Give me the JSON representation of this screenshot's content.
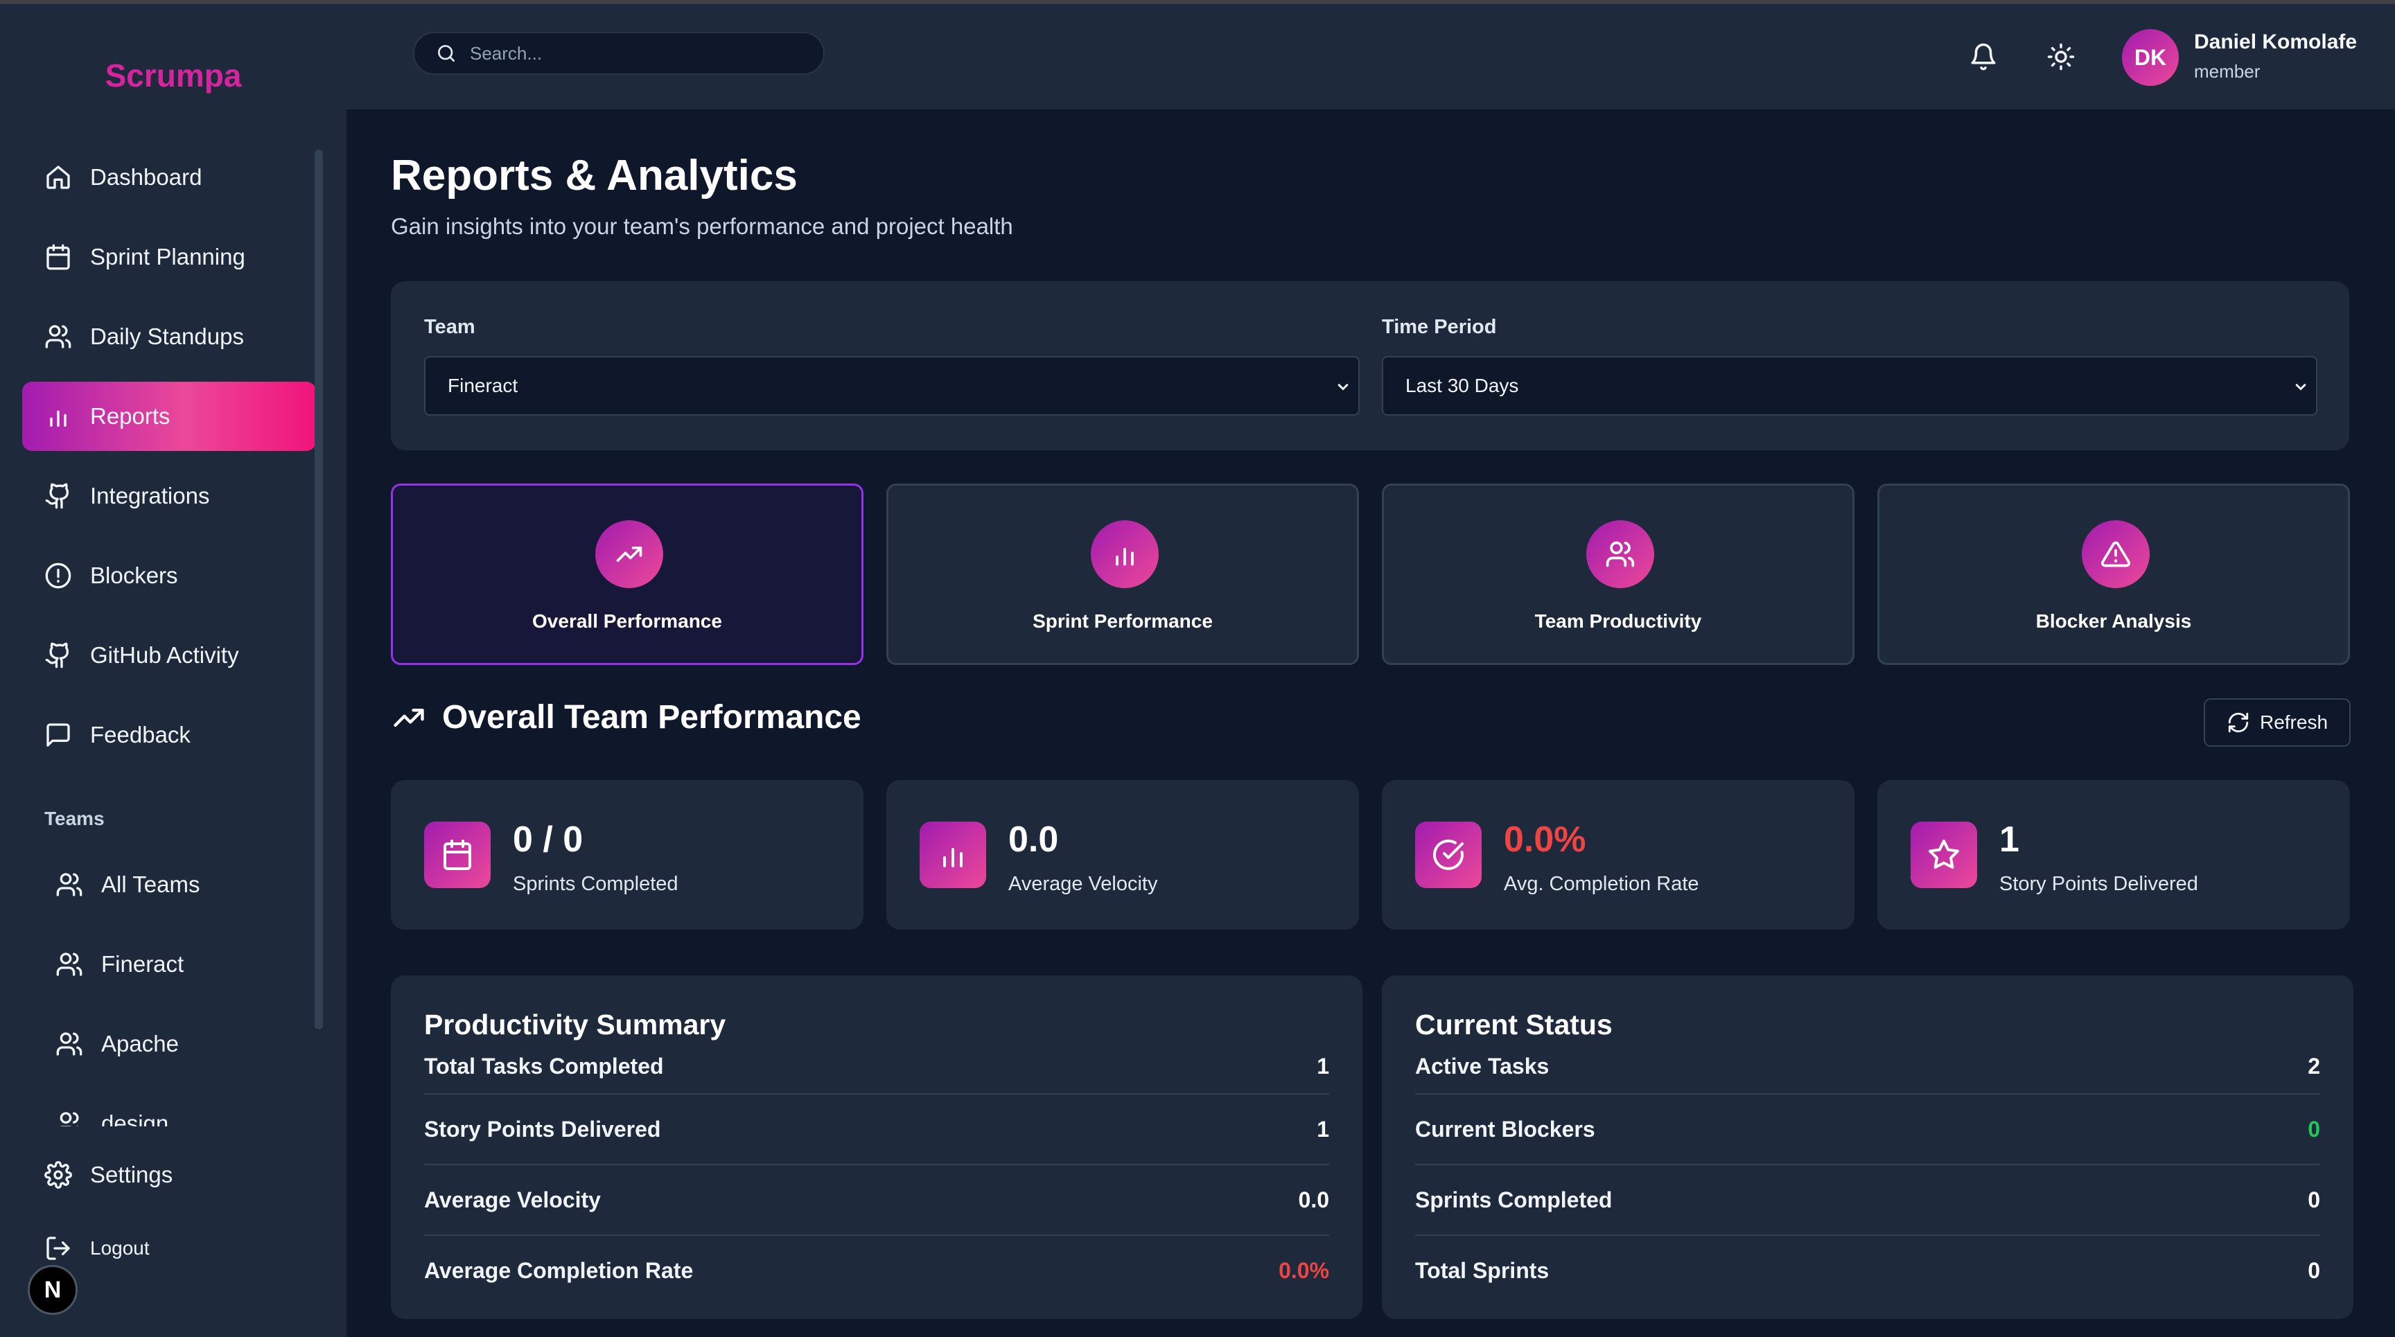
{
  "app": {
    "name": "Scrumpa"
  },
  "sidebar": {
    "items": [
      {
        "label": "Dashboard",
        "icon": "home-icon"
      },
      {
        "label": "Sprint Planning",
        "icon": "calendar-icon"
      },
      {
        "label": "Daily Standups",
        "icon": "users-icon"
      },
      {
        "label": "Reports",
        "icon": "bar-chart-icon",
        "active": true
      },
      {
        "label": "Integrations",
        "icon": "github-icon"
      },
      {
        "label": "Blockers",
        "icon": "alert-circle-icon"
      },
      {
        "label": "GitHub Activity",
        "icon": "github-icon"
      },
      {
        "label": "Feedback",
        "icon": "message-square-icon"
      }
    ],
    "teams_label": "Teams",
    "teams": [
      {
        "label": "All Teams",
        "icon": "users-icon"
      },
      {
        "label": "Fineract",
        "icon": "users-icon"
      },
      {
        "label": "Apache",
        "icon": "users-icon"
      },
      {
        "label": "design",
        "icon": "users-icon"
      }
    ],
    "settings_label": "Settings",
    "logout_label": "Logout",
    "badge_letter": "N"
  },
  "header": {
    "search_placeholder": "Search...",
    "user": {
      "initials": "DK",
      "name": "Daniel Komolafe",
      "role": "member"
    }
  },
  "page": {
    "title": "Reports & Analytics",
    "subtitle": "Gain insights into your team's performance and project health"
  },
  "filters": {
    "team_label": "Team",
    "team_value": "Fineract",
    "period_label": "Time Period",
    "period_value": "Last 30 Days"
  },
  "report_tabs": [
    {
      "label": "Overall Performance",
      "icon": "trending-up-icon",
      "selected": true
    },
    {
      "label": "Sprint Performance",
      "icon": "bar-chart-icon"
    },
    {
      "label": "Team Productivity",
      "icon": "users-icon"
    },
    {
      "label": "Blocker Analysis",
      "icon": "alert-triangle-icon"
    }
  ],
  "section": {
    "title": "Overall Team Performance",
    "refresh_label": "Refresh"
  },
  "stats": [
    {
      "value": "0 / 0",
      "label": "Sprints Completed",
      "icon": "calendar-icon"
    },
    {
      "value": "0.0",
      "label": "Average Velocity",
      "icon": "bar-chart-icon"
    },
    {
      "value": "0.0%",
      "label": "Avg. Completion Rate",
      "icon": "check-circle-icon",
      "color": "#ef4444"
    },
    {
      "value": "1",
      "label": "Story Points Delivered",
      "icon": "star-icon"
    }
  ],
  "productivity": {
    "title": "Productivity Summary",
    "rows": [
      {
        "label": "Total Tasks Completed",
        "value": "1"
      },
      {
        "label": "Story Points Delivered",
        "value": "1"
      },
      {
        "label": "Average Velocity",
        "value": "0.0"
      },
      {
        "label": "Average Completion Rate",
        "value": "0.0%",
        "color": "#ef4444"
      }
    ]
  },
  "status": {
    "title": "Current Status",
    "rows": [
      {
        "label": "Active Tasks",
        "value": "2"
      },
      {
        "label": "Current Blockers",
        "value": "0",
        "color": "#22c55e"
      },
      {
        "label": "Sprints Completed",
        "value": "0"
      },
      {
        "label": "Total Sprints",
        "value": "0"
      }
    ]
  },
  "colors": {
    "accent": "#d6249f",
    "gradient_start": "#a21caf",
    "gradient_end": "#ec4899",
    "danger": "#ef4444",
    "success": "#22c55e"
  }
}
